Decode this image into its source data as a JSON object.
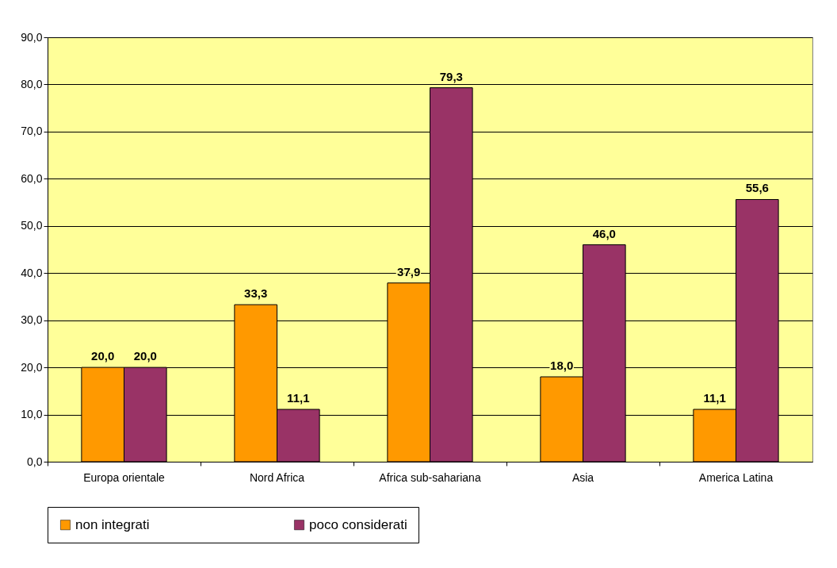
{
  "chart_data": {
    "type": "bar",
    "categories": [
      "Europa orientale",
      "Nord Africa",
      "Africa sub-sahariana",
      "Asia",
      "America Latina"
    ],
    "series": [
      {
        "name": "non integrati",
        "color": "#ff9900",
        "values": [
          20.0,
          33.3,
          37.9,
          18.0,
          11.1
        ],
        "value_labels": [
          "20,0",
          "33,3",
          "37,9",
          "18,0",
          "11,1"
        ]
      },
      {
        "name": "poco considerati",
        "color": "#993366",
        "values": [
          20.0,
          11.1,
          79.3,
          46.0,
          55.6
        ],
        "value_labels": [
          "20,0",
          "11,1",
          "79,3",
          "46,0",
          "55,6"
        ]
      }
    ],
    "ylim": [
      0,
      90
    ],
    "yticks": [
      {
        "value": 0,
        "label": "0,0"
      },
      {
        "value": 10,
        "label": "10,0"
      },
      {
        "value": 20,
        "label": "20,0"
      },
      {
        "value": 30,
        "label": "30,0"
      },
      {
        "value": 40,
        "label": "40,0"
      },
      {
        "value": 50,
        "label": "50,0"
      },
      {
        "value": 60,
        "label": "60,0"
      },
      {
        "value": 70,
        "label": "70,0"
      },
      {
        "value": 80,
        "label": "80,0"
      },
      {
        "value": 90,
        "label": "90,0"
      }
    ],
    "grid": "y",
    "legend": "bottom"
  }
}
